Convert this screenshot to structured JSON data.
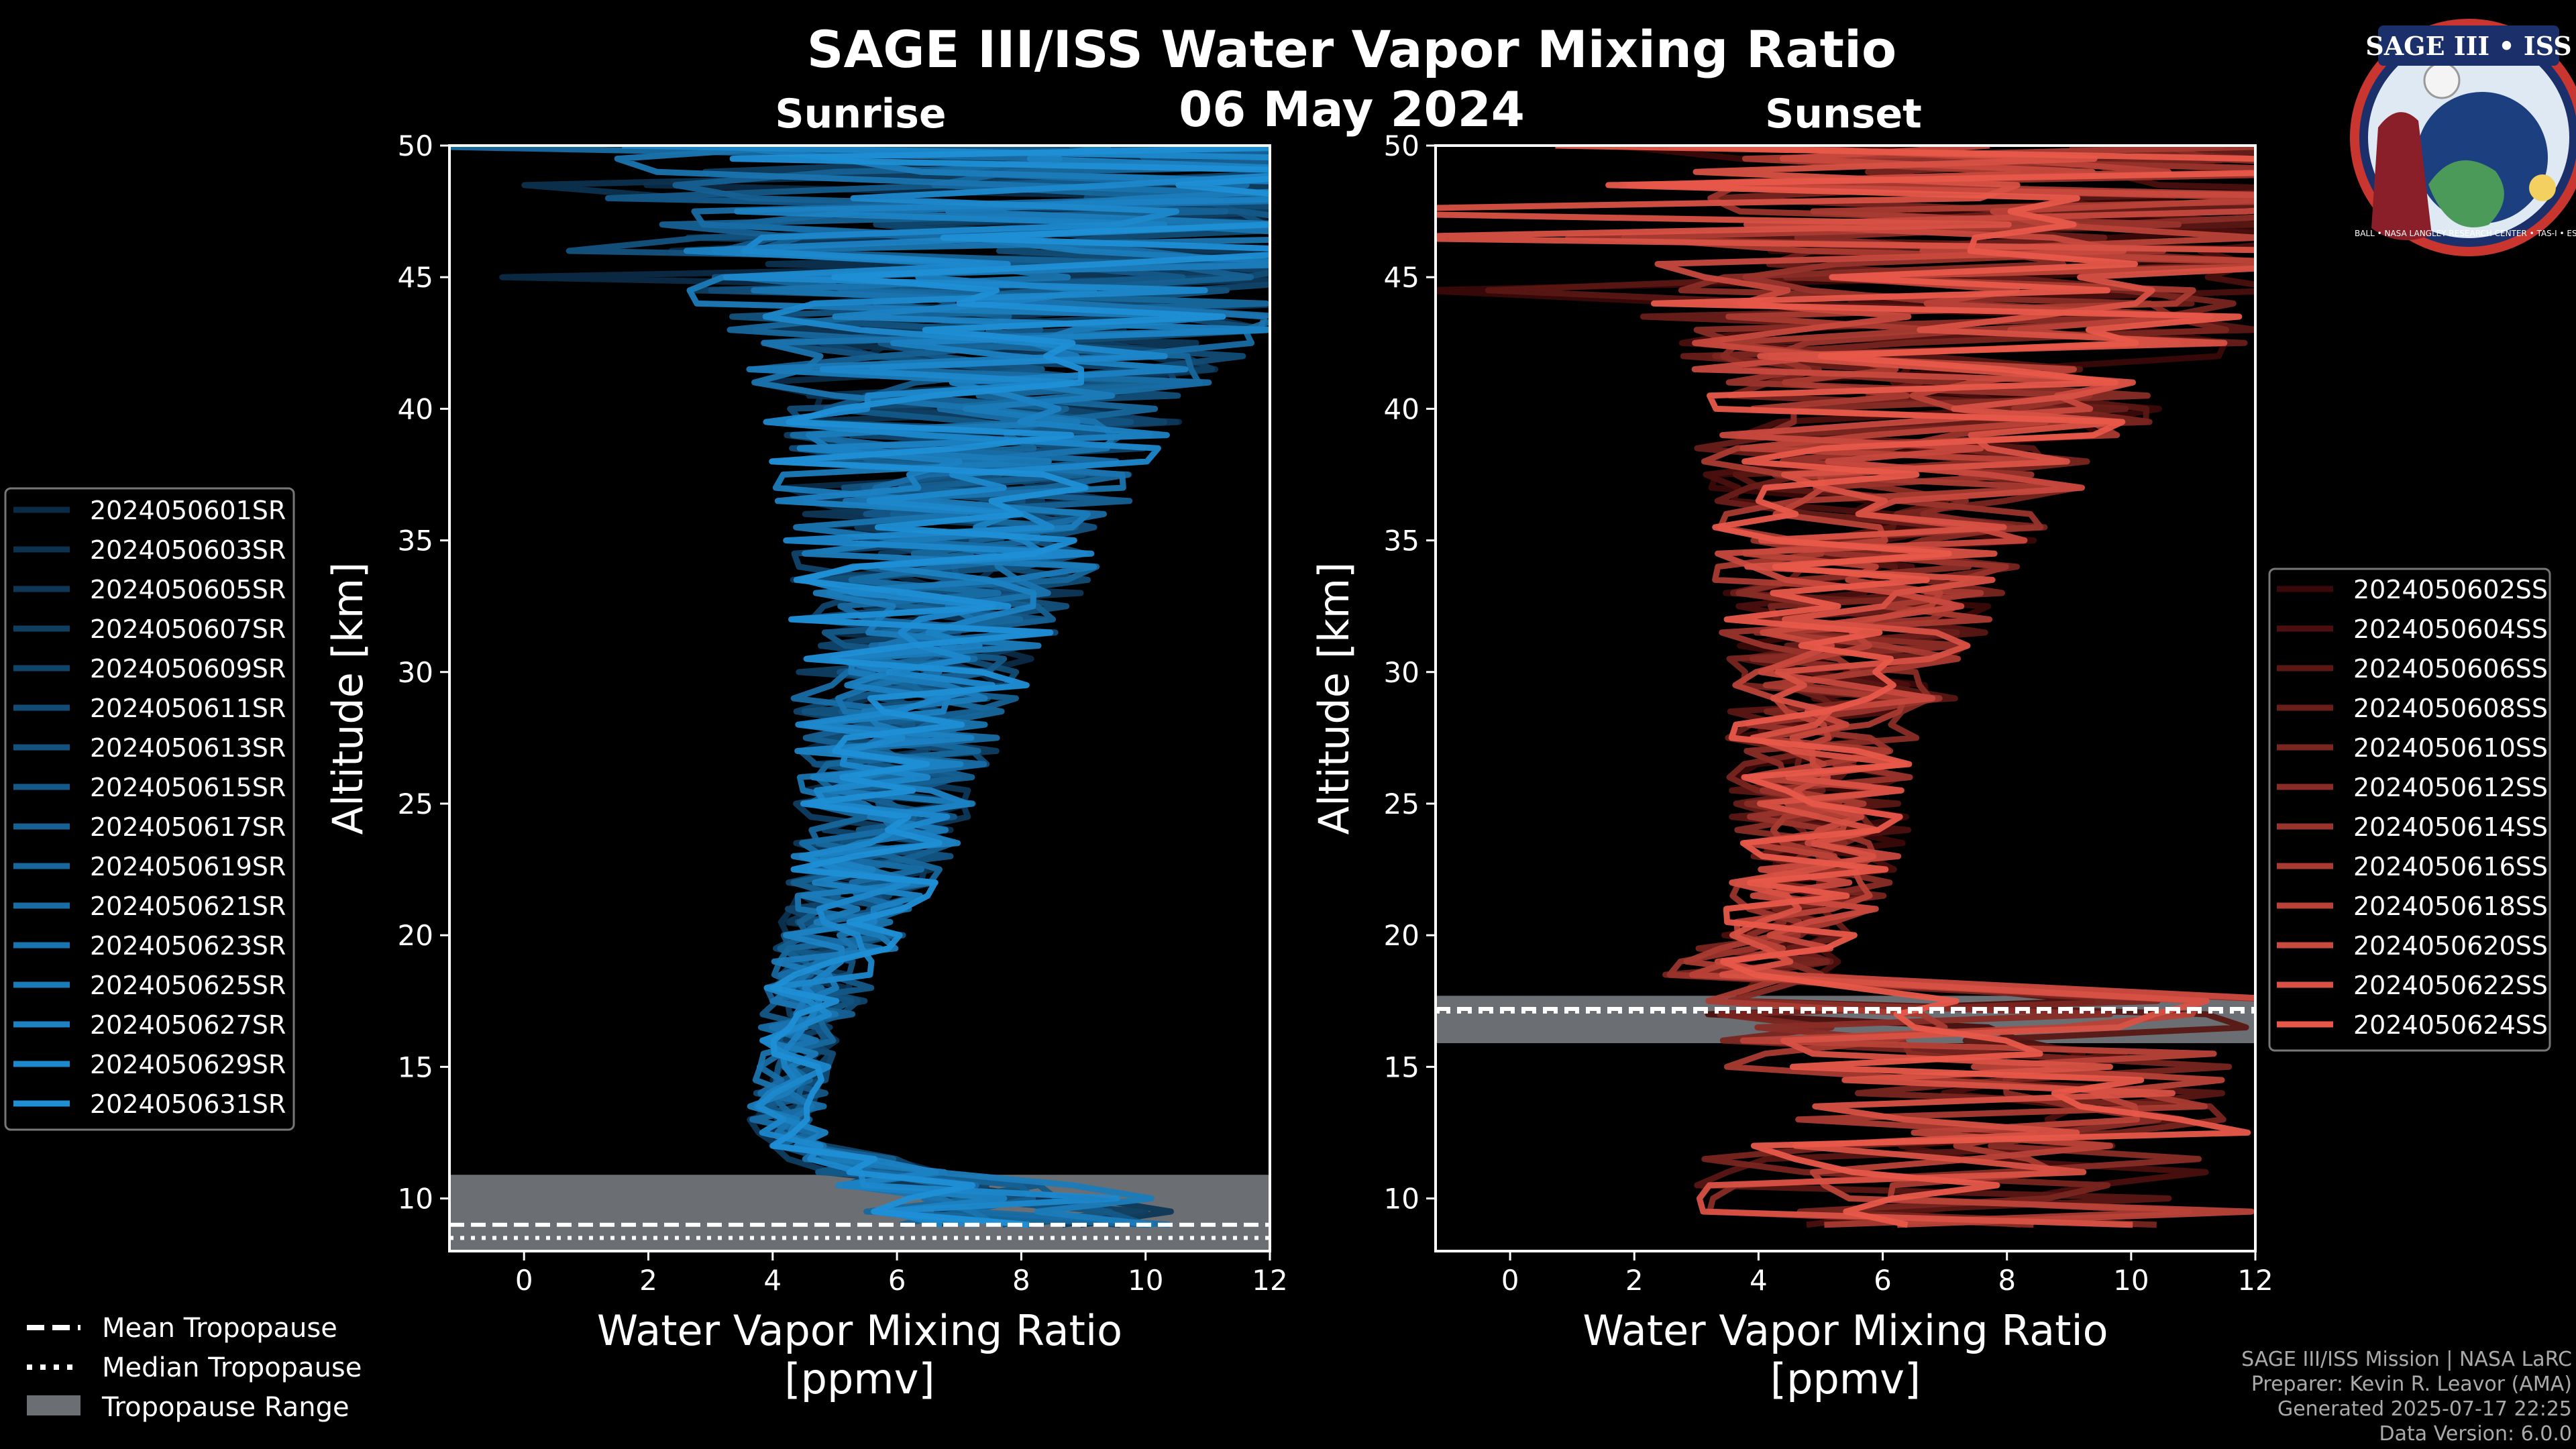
{
  "title": "SAGE III/ISS Water Vapor Mixing Ratio",
  "date": "06 May 2024",
  "colors": {
    "sunrise": "#1f8fd6",
    "sunset": "#e8584a",
    "background": "#000000",
    "trop_range": "#6b6e73"
  },
  "chart_data": [
    {
      "type": "line",
      "panel": "Sunrise",
      "title": "Sunrise",
      "xlabel": "Water Vapor Mixing Ratio [ppmv]",
      "ylabel": "Altitude [km]",
      "xlim": [
        -1.2,
        12
      ],
      "ylim": [
        8,
        50
      ],
      "xticks": [
        0,
        2,
        4,
        6,
        8,
        10,
        12
      ],
      "yticks": [
        10,
        15,
        20,
        25,
        30,
        35,
        40,
        45,
        50
      ],
      "series_names": [
        "2024050601SR",
        "2024050603SR",
        "2024050605SR",
        "2024050607SR",
        "2024050609SR",
        "2024050611SR",
        "2024050613SR",
        "2024050615SR",
        "2024050617SR",
        "2024050619SR",
        "2024050621SR",
        "2024050623SR",
        "2024050625SR",
        "2024050627SR",
        "2024050629SR",
        "2024050631SR"
      ],
      "profile_shape": {
        "altitude_km": [
          10,
          11,
          12,
          13,
          15,
          17,
          20,
          23,
          26,
          30,
          33,
          36,
          40,
          44,
          48
        ],
        "mean_ppmv": [
          8,
          6,
          4.4,
          4.2,
          4.3,
          4.6,
          5.1,
          5.6,
          5.9,
          6.3,
          6.6,
          6.9,
          7.2,
          7.6,
          8.5
        ],
        "spread_ppmv": [
          2.5,
          1.5,
          0.5,
          0.6,
          0.6,
          0.8,
          1,
          1.3,
          1.5,
          2,
          2.4,
          2.8,
          3.5,
          5,
          7
        ]
      },
      "tropopause": {
        "mean_km": 9.0,
        "median_km": 8.5,
        "range_km": [
          8.0,
          10.9
        ]
      }
    },
    {
      "type": "line",
      "panel": "Sunset",
      "title": "Sunset",
      "xlabel": "Water Vapor Mixing Ratio [ppmv]",
      "ylabel": "Altitude [km]",
      "xlim": [
        -1.2,
        12
      ],
      "ylim": [
        8,
        50
      ],
      "xticks": [
        0,
        2,
        4,
        6,
        8,
        10,
        12
      ],
      "yticks": [
        10,
        15,
        20,
        25,
        30,
        35,
        40,
        45,
        50
      ],
      "series_names": [
        "2024050602SS",
        "2024050604SS",
        "2024050606SS",
        "2024050608SS",
        "2024050610SS",
        "2024050612SS",
        "2024050614SS",
        "2024050616SS",
        "2024050618SS",
        "2024050620SS",
        "2024050622SS",
        "2024050624SS"
      ],
      "profile_shape": {
        "altitude_km": [
          18,
          20,
          23,
          26,
          30,
          33,
          36,
          40,
          44,
          48
        ],
        "mean_ppmv": [
          3.5,
          4.5,
          5,
          5.1,
          5.4,
          5.7,
          6.1,
          6.8,
          7.5,
          8.5
        ],
        "spread_ppmv": [
          1.5,
          1.2,
          1.4,
          1.6,
          2,
          2.4,
          2.8,
          4,
          5.5,
          7
        ]
      },
      "tropopause": {
        "mean_km": 17.2,
        "median_km": 17.1,
        "range_km": [
          15.9,
          17.7
        ]
      }
    }
  ],
  "legend_common": [
    "Mean Tropopause",
    "Median Tropopause",
    "Tropopause Range"
  ],
  "footer": {
    "line1": "SAGE III/ISS Mission | NASA LaRC",
    "line2": "Preparer: Kevin R. Leavor (AMA)",
    "line3": "Generated 2025-07-17 22:25",
    "line4": "Data Version: 6.0.0"
  },
  "badge": {
    "title": "SAGE III • ISS",
    "ring_text": "BALL • NASA LANGLEY RESEARCH CENTER • TAS-I • ESA"
  }
}
